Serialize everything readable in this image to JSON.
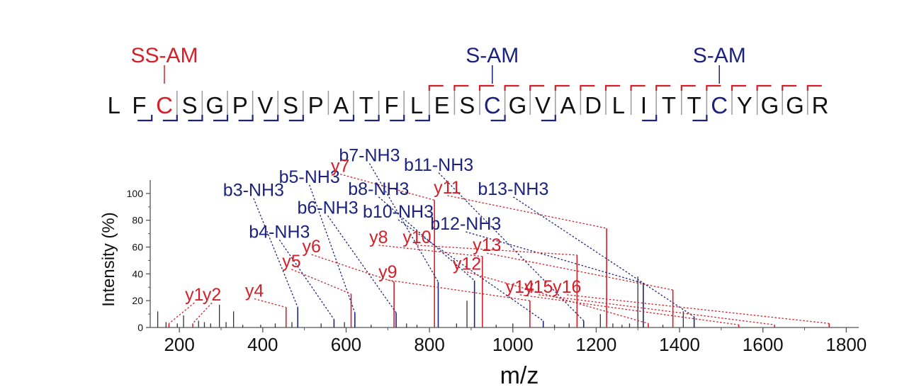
{
  "colors": {
    "b_ion": "#1c237c",
    "y_ion": "#d5202a",
    "other_peak": "#333333",
    "frame": "#555555",
    "divider": "#9a9a9a",
    "text": "#111111"
  },
  "peptide": {
    "residues": [
      "L",
      "F",
      "C",
      "S",
      "G",
      "P",
      "V",
      "S",
      "P",
      "A",
      "T",
      "F",
      "L",
      "E",
      "S",
      "C",
      "G",
      "V",
      "A",
      "D",
      "L",
      "I",
      "T",
      "T",
      "C",
      "Y",
      "G",
      "G",
      "R"
    ],
    "colored_residues": [
      {
        "index": 2,
        "color": "#d5202a"
      },
      {
        "index": 15,
        "color": "#1c237c"
      },
      {
        "index": 24,
        "color": "#1c237c"
      }
    ],
    "modifications": [
      {
        "index": 2,
        "label": "SS-AM",
        "color": "#d5202a"
      },
      {
        "index": 15,
        "label": "S-AM",
        "color": "#1c237c"
      },
      {
        "index": 24,
        "label": "S-AM",
        "color": "#1c237c"
      }
    ],
    "b_cleavages": [
      2,
      3,
      4,
      5,
      6,
      7,
      8,
      10,
      11,
      12,
      13,
      16,
      18,
      22,
      24
    ],
    "y_cleavages": [
      13,
      14,
      15,
      16,
      17,
      18,
      19,
      20,
      21,
      22,
      23,
      24,
      25,
      26,
      27,
      28
    ]
  },
  "chart_data": {
    "type": "bar",
    "title": "",
    "xlabel": "m/z",
    "ylabel": "Intensity (%)",
    "xlim": [
      130,
      1830
    ],
    "ylim": [
      0,
      110
    ],
    "xticks": [
      200,
      400,
      600,
      800,
      1000,
      1200,
      1400,
      1600,
      1800
    ],
    "yticks": [
      0,
      20,
      40,
      60,
      80,
      100
    ],
    "grid": false,
    "series": [
      {
        "name": "b",
        "color": "#1c237c",
        "peaks": [
          {
            "label": "b3-NH3",
            "mz": 484,
            "intensity": 15,
            "label_mz": 378,
            "label_int": 98
          },
          {
            "label": "b4-NH3",
            "mz": 571,
            "intensity": 6,
            "label_mz": 440,
            "label_int": 67
          },
          {
            "label": "b5-NH3",
            "mz": 621,
            "intensity": 11,
            "label_mz": 512,
            "label_int": 108
          },
          {
            "label": "b6-NH3",
            "mz": 720,
            "intensity": 11,
            "label_mz": 556,
            "label_int": 85
          },
          {
            "label": "b7-NH3",
            "mz": 821,
            "intensity": 34,
            "label_mz": 656,
            "label_int": 124
          },
          {
            "label": "b8-NH3",
            "mz": 908,
            "intensity": 35,
            "label_mz": 678,
            "label_int": 99
          },
          {
            "label": "b10-NH3",
            "mz": 1073,
            "intensity": 5,
            "label_mz": 725,
            "label_int": 82
          },
          {
            "label": "b11-NH3",
            "mz": 1170,
            "intensity": 5,
            "label_mz": 822,
            "label_int": 117
          },
          {
            "label": "b12-NH3",
            "mz": 1313,
            "intensity": 33,
            "label_mz": 887,
            "label_int": 73
          },
          {
            "label": "b13-NH3",
            "mz": 1435,
            "intensity": 8,
            "label_mz": 1001,
            "label_int": 99
          }
        ]
      },
      {
        "name": "y",
        "color": "#d5202a",
        "peaks": [
          {
            "label": "y1",
            "mz": 175,
            "intensity": 3,
            "label_mz": 236,
            "label_int": 20
          },
          {
            "label": "y2",
            "mz": 232,
            "intensity": 3,
            "label_mz": 278,
            "label_int": 20
          },
          {
            "label": "y4",
            "mz": 456,
            "intensity": 15,
            "label_mz": 380,
            "label_int": 23
          },
          {
            "label": "y5",
            "mz": 612,
            "intensity": 25,
            "label_mz": 469,
            "label_int": 45
          },
          {
            "label": "y6",
            "mz": 715,
            "intensity": 34,
            "label_mz": 517,
            "label_int": 56
          },
          {
            "label": "y7",
            "mz": 812,
            "intensity": 95,
            "label_mz": 586,
            "label_int": 116
          },
          {
            "label": "y8",
            "mz": 927,
            "intensity": 53,
            "label_mz": 678,
            "label_int": 63
          },
          {
            "label": "y9",
            "mz": 1041,
            "intensity": 20,
            "label_mz": 700,
            "label_int": 37
          },
          {
            "label": "y10",
            "mz": 1154,
            "intensity": 54,
            "label_mz": 770,
            "label_int": 63
          },
          {
            "label": "y11",
            "mz": 1225,
            "intensity": 74,
            "label_mz": 843,
            "label_int": 100
          },
          {
            "label": "y12",
            "mz": 1325,
            "intensity": 3,
            "label_mz": 890,
            "label_int": 43
          },
          {
            "label": "y13",
            "mz": 1384,
            "intensity": 28,
            "label_mz": 938,
            "label_int": 57
          },
          {
            "label": "y14",
            "mz": 1542,
            "intensity": 2,
            "label_mz": 1017,
            "label_int": 26
          },
          {
            "label": "y15",
            "mz": 1628,
            "intensity": 2,
            "label_mz": 1062,
            "label_int": 26
          },
          {
            "label": "y16",
            "mz": 1759,
            "intensity": 3,
            "label_mz": 1130,
            "label_int": 26
          }
        ]
      },
      {
        "name": "",
        "color": "#333333",
        "peaks": [
          {
            "mz": 148,
            "intensity": 12
          },
          {
            "mz": 168,
            "intensity": 4
          },
          {
            "mz": 195,
            "intensity": 3
          },
          {
            "mz": 210,
            "intensity": 9
          },
          {
            "mz": 246,
            "intensity": 5
          },
          {
            "mz": 260,
            "intensity": 4
          },
          {
            "mz": 275,
            "intensity": 3
          },
          {
            "mz": 296,
            "intensity": 17
          },
          {
            "mz": 312,
            "intensity": 4
          },
          {
            "mz": 330,
            "intensity": 12
          },
          {
            "mz": 352,
            "intensity": 2
          },
          {
            "mz": 395,
            "intensity": 2
          },
          {
            "mz": 430,
            "intensity": 3
          },
          {
            "mz": 470,
            "intensity": 4
          },
          {
            "mz": 540,
            "intensity": 3
          },
          {
            "mz": 596,
            "intensity": 4
          },
          {
            "mz": 660,
            "intensity": 2
          },
          {
            "mz": 745,
            "intensity": 3
          },
          {
            "mz": 770,
            "intensity": 2
          },
          {
            "mz": 865,
            "intensity": 3
          },
          {
            "mz": 890,
            "intensity": 20
          },
          {
            "mz": 960,
            "intensity": 2
          },
          {
            "mz": 1000,
            "intensity": 3
          },
          {
            "mz": 1100,
            "intensity": 2
          },
          {
            "mz": 1135,
            "intensity": 3
          },
          {
            "mz": 1210,
            "intensity": 10
          },
          {
            "mz": 1240,
            "intensity": 3
          },
          {
            "mz": 1262,
            "intensity": 2
          },
          {
            "mz": 1280,
            "intensity": 3
          },
          {
            "mz": 1300,
            "intensity": 38
          },
          {
            "mz": 1360,
            "intensity": 2
          },
          {
            "mz": 1409,
            "intensity": 12
          }
        ]
      }
    ]
  }
}
